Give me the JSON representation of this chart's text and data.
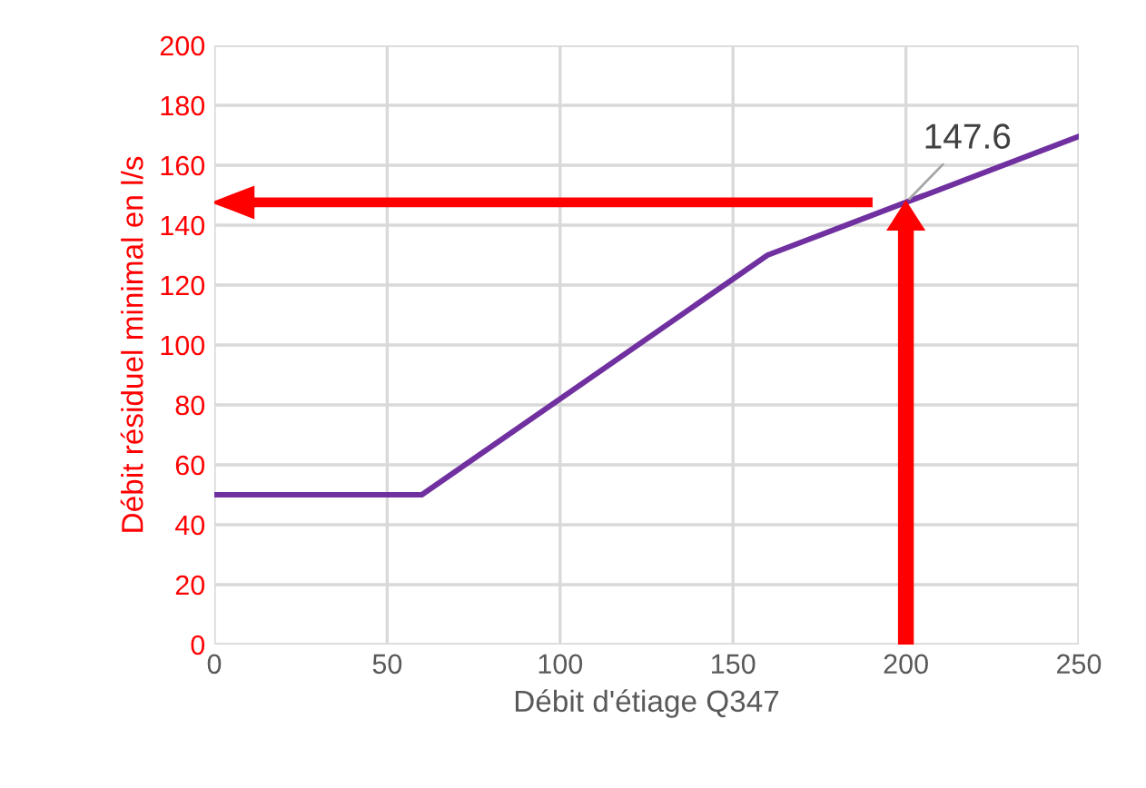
{
  "chart_data": {
    "type": "line",
    "xlabel": "Débit d'étiage Q347",
    "ylabel": "Débit résiduel minimal en l/s",
    "x": [
      0,
      60,
      160,
      200,
      250
    ],
    "series": [
      {
        "color": "#7030a0",
        "values": [
          50,
          50,
          130,
          147.6,
          169.6
        ]
      }
    ],
    "annotations": [
      {
        "text": "147.6",
        "x": 200,
        "y": 147.6
      }
    ],
    "xlim": [
      0,
      250
    ],
    "xticks": [
      0,
      50,
      100,
      150,
      200,
      250
    ],
    "ylim": [
      0,
      200
    ],
    "yticks": [
      0,
      20,
      40,
      60,
      80,
      100,
      120,
      140,
      160,
      180,
      200
    ],
    "grid": true,
    "legend": false,
    "marker": "none",
    "line_style": "solid"
  }
}
